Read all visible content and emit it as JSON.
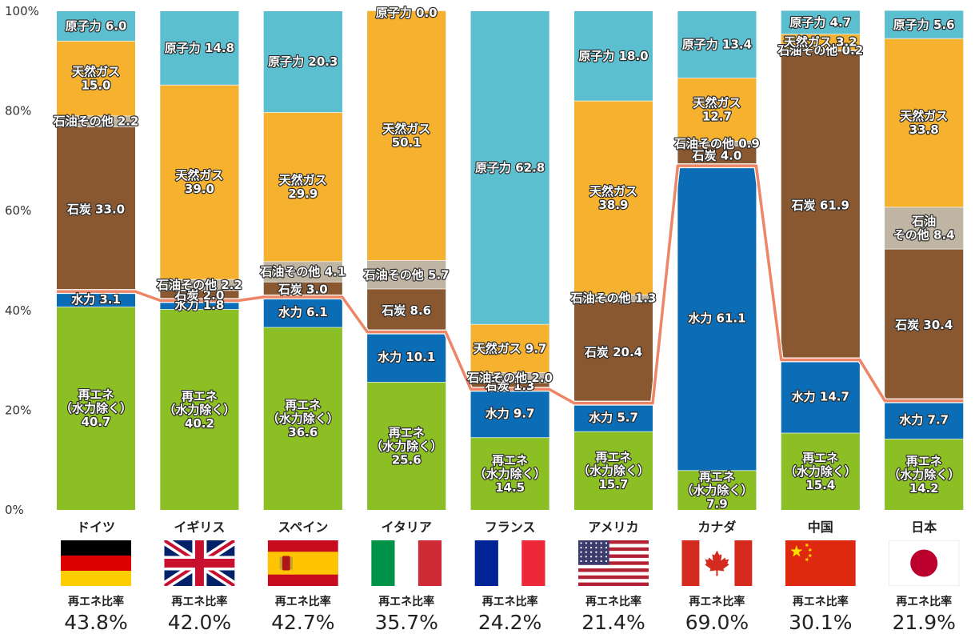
{
  "chart_data": {
    "type": "bar",
    "stacked": true,
    "y_unit": "%",
    "ylim": [
      0,
      100
    ],
    "y_ticks": [
      "0%",
      "20%",
      "40%",
      "60%",
      "80%",
      "100%"
    ],
    "grid": false,
    "colors": {
      "renewable": "#8cbf23",
      "hydro": "#0b6db5",
      "coal": "#8a5830",
      "oil": "#c0b4a2",
      "gas": "#f6b12e",
      "nuclear": "#5bbfcf",
      "line": "#ec8667",
      "highlight": "#e60012"
    },
    "ratio_label": "再エネ比率",
    "highlight_country": "日本",
    "countries": [
      {
        "name": "ドイツ",
        "flag": "germany",
        "ratio": "43.8%",
        "ratio_value": 43.8,
        "segments": [
          {
            "type": "renewable",
            "value": 40.7,
            "label": [
              "再エネ",
              "（水力除く）",
              "40.7"
            ]
          },
          {
            "type": "hydro",
            "value": 3.1,
            "label": [
              "水力 3.1"
            ]
          },
          {
            "type": "coal",
            "value": 33.0,
            "label": [
              "石炭 33.0"
            ]
          },
          {
            "type": "oil",
            "value": 2.2,
            "label": [
              "石油その他 2.2"
            ]
          },
          {
            "type": "gas",
            "value": 15.0,
            "label": [
              "天然ガス",
              "15.0"
            ]
          },
          {
            "type": "nuclear",
            "value": 6.0,
            "label": [
              "原子力 6.0"
            ]
          }
        ]
      },
      {
        "name": "イギリス",
        "flag": "uk",
        "ratio": "42.0%",
        "ratio_value": 42.0,
        "segments": [
          {
            "type": "renewable",
            "value": 40.2,
            "label": [
              "再エネ",
              "（水力除く）",
              "40.2"
            ]
          },
          {
            "type": "hydro",
            "value": 1.8,
            "label": [
              "水力 1.8"
            ]
          },
          {
            "type": "coal",
            "value": 2.0,
            "label": [
              "石炭 2.0"
            ]
          },
          {
            "type": "oil",
            "value": 2.2,
            "label": [
              "石油その他 2.2"
            ]
          },
          {
            "type": "gas",
            "value": 39.0,
            "label": [
              "天然ガス",
              "39.0"
            ]
          },
          {
            "type": "nuclear",
            "value": 14.8,
            "label": [
              "原子力 14.8"
            ]
          }
        ]
      },
      {
        "name": "スペイン",
        "flag": "spain",
        "ratio": "42.7%",
        "ratio_value": 42.7,
        "segments": [
          {
            "type": "renewable",
            "value": 36.6,
            "label": [
              "再エネ",
              "（水力除く）",
              "36.6"
            ]
          },
          {
            "type": "hydro",
            "value": 6.1,
            "label": [
              "水力 6.1"
            ]
          },
          {
            "type": "coal",
            "value": 3.0,
            "label": [
              "石炭 3.0"
            ]
          },
          {
            "type": "oil",
            "value": 4.1,
            "label": [
              "石油その他 4.1"
            ]
          },
          {
            "type": "gas",
            "value": 29.9,
            "label": [
              "天然ガス",
              "29.9"
            ]
          },
          {
            "type": "nuclear",
            "value": 20.3,
            "label": [
              "原子力 20.3"
            ]
          }
        ]
      },
      {
        "name": "イタリア",
        "flag": "italy",
        "ratio": "35.7%",
        "ratio_value": 35.7,
        "segments": [
          {
            "type": "renewable",
            "value": 25.6,
            "label": [
              "再エネ",
              "（水力除く）",
              "25.6"
            ]
          },
          {
            "type": "hydro",
            "value": 10.1,
            "label": [
              "水力 10.1"
            ]
          },
          {
            "type": "coal",
            "value": 8.6,
            "label": [
              "石炭 8.6"
            ]
          },
          {
            "type": "oil",
            "value": 5.7,
            "label": [
              "石油その他 5.7"
            ]
          },
          {
            "type": "gas",
            "value": 50.1,
            "label": [
              "天然ガス",
              "50.1"
            ]
          },
          {
            "type": "nuclear",
            "value": 0.0,
            "label": [
              "原子力 0.0"
            ]
          }
        ]
      },
      {
        "name": "フランス",
        "flag": "france",
        "ratio": "24.2%",
        "ratio_value": 24.2,
        "segments": [
          {
            "type": "renewable",
            "value": 14.5,
            "label": [
              "再エネ",
              "（水力除く）",
              "14.5"
            ]
          },
          {
            "type": "hydro",
            "value": 9.7,
            "label": [
              "水力 9.7"
            ]
          },
          {
            "type": "coal",
            "value": 1.3,
            "label": [
              "石炭 1.3"
            ]
          },
          {
            "type": "oil",
            "value": 2.0,
            "label": [
              "石油その他 2.0"
            ]
          },
          {
            "type": "gas",
            "value": 9.7,
            "label": [
              "天然ガス 9.7"
            ]
          },
          {
            "type": "nuclear",
            "value": 62.8,
            "label": [
              "原子力 62.8"
            ]
          }
        ]
      },
      {
        "name": "アメリカ",
        "flag": "usa",
        "ratio": "21.4%",
        "ratio_value": 21.4,
        "segments": [
          {
            "type": "renewable",
            "value": 15.7,
            "label": [
              "再エネ",
              "（水力除く）",
              "15.7"
            ]
          },
          {
            "type": "hydro",
            "value": 5.7,
            "label": [
              "水力 5.7"
            ]
          },
          {
            "type": "coal",
            "value": 20.4,
            "label": [
              "石炭 20.4"
            ]
          },
          {
            "type": "oil",
            "value": 1.3,
            "label": [
              "石油その他 1.3"
            ]
          },
          {
            "type": "gas",
            "value": 38.9,
            "label": [
              "天然ガス",
              "38.9"
            ]
          },
          {
            "type": "nuclear",
            "value": 18.0,
            "label": [
              "原子力 18.0"
            ]
          }
        ]
      },
      {
        "name": "カナダ",
        "flag": "canada",
        "ratio": "69.0%",
        "ratio_value": 69.0,
        "segments": [
          {
            "type": "renewable",
            "value": 7.9,
            "label": [
              "再エネ",
              "（水力除く）",
              "7.9"
            ]
          },
          {
            "type": "hydro",
            "value": 61.1,
            "label": [
              "水力 61.1"
            ]
          },
          {
            "type": "coal",
            "value": 4.0,
            "label": [
              "石炭 4.0"
            ]
          },
          {
            "type": "oil",
            "value": 0.9,
            "label": [
              "石油その他 0.9"
            ]
          },
          {
            "type": "gas",
            "value": 12.7,
            "label": [
              "天然ガス",
              "12.7"
            ]
          },
          {
            "type": "nuclear",
            "value": 13.4,
            "label": [
              "原子力 13.4"
            ]
          }
        ]
      },
      {
        "name": "中国",
        "flag": "china",
        "ratio": "30.1%",
        "ratio_value": 30.1,
        "segments": [
          {
            "type": "renewable",
            "value": 15.4,
            "label": [
              "再エネ",
              "（水力除く）",
              "15.4"
            ]
          },
          {
            "type": "hydro",
            "value": 14.7,
            "label": [
              "水力 14.7"
            ]
          },
          {
            "type": "coal",
            "value": 61.9,
            "label": [
              "石炭 61.9"
            ]
          },
          {
            "type": "oil",
            "value": 0.2,
            "label": [
              "石油その他 0.2"
            ]
          },
          {
            "type": "gas",
            "value": 3.2,
            "label": [
              "天然ガス 3.2"
            ]
          },
          {
            "type": "nuclear",
            "value": 4.7,
            "label": [
              "原子力 4.7"
            ]
          }
        ]
      },
      {
        "name": "日本",
        "flag": "japan",
        "ratio": "21.9%",
        "ratio_value": 21.9,
        "segments": [
          {
            "type": "renewable",
            "value": 14.2,
            "label": [
              "再エネ",
              "（水力除く）",
              "14.2"
            ]
          },
          {
            "type": "hydro",
            "value": 7.7,
            "label": [
              "水力 7.7"
            ]
          },
          {
            "type": "coal",
            "value": 30.4,
            "label": [
              "石炭 30.4"
            ]
          },
          {
            "type": "oil",
            "value": 8.4,
            "label": [
              "石油",
              "その他 8.4"
            ]
          },
          {
            "type": "gas",
            "value": 33.8,
            "label": [
              "天然ガス",
              "33.8"
            ]
          },
          {
            "type": "nuclear",
            "value": 5.6,
            "label": [
              "原子力 5.6"
            ]
          }
        ]
      }
    ]
  }
}
